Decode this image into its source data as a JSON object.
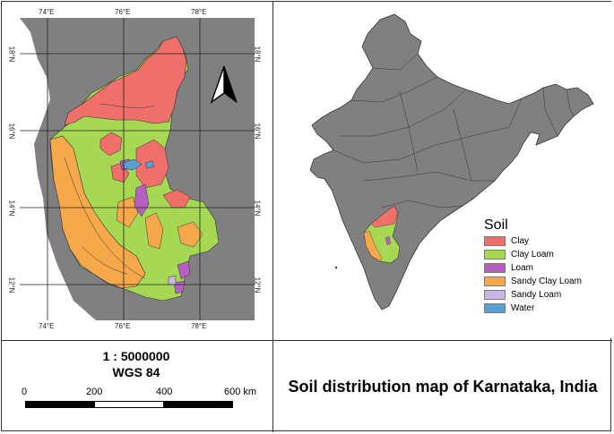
{
  "left_map": {
    "lon_ticks": [
      "74°E",
      "76°E",
      "78°E"
    ],
    "lat_ticks": [
      "18°N",
      "16°N",
      "14°N",
      "12°N"
    ],
    "north_arrow": "north-arrow-icon"
  },
  "scale": {
    "ratio": "1 : 5000000",
    "crs": "WGS 84",
    "labels": [
      "0",
      "200",
      "400",
      "600 km"
    ]
  },
  "legend": {
    "title": "Soil",
    "items": [
      {
        "label": "Clay",
        "color": "#ef6f6a"
      },
      {
        "label": "Clay Loam",
        "color": "#a6d854"
      },
      {
        "label": "Loam",
        "color": "#b55fc0"
      },
      {
        "label": "Sandy Clay Loam",
        "color": "#f6a84a"
      },
      {
        "label": "Sandy Loam",
        "color": "#c8b6e6"
      },
      {
        "label": "Water",
        "color": "#5a9fd4"
      }
    ]
  },
  "title": "Soil distribution map of Karnataka, India",
  "colors": {
    "land_grey": "#808080",
    "sea": "#ffffff",
    "border": "#333333"
  }
}
